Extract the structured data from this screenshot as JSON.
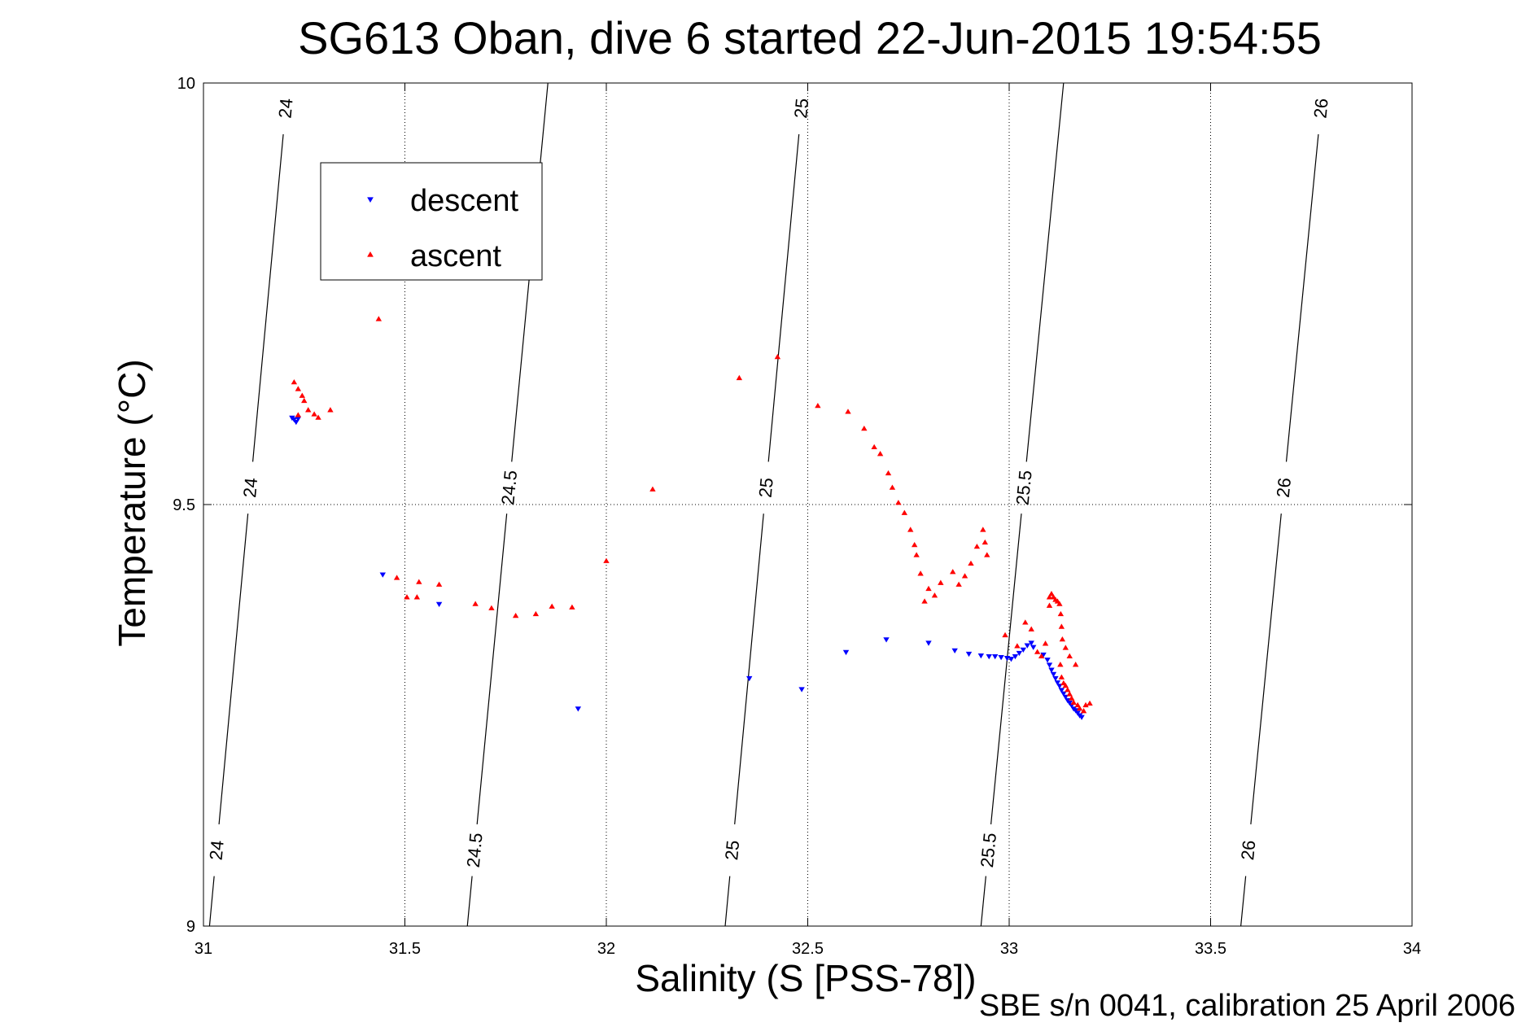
{
  "chart_data": {
    "type": "scatter",
    "title": "SG613 Oban, dive 6 started 22-Jun-2015 19:54:55",
    "xlabel": "Salinity (S [PSS-78])",
    "ylabel": "Temperature (°C)",
    "footnote": "SBE s/n 0041, calibration 25 April 2006",
    "xlim": [
      31,
      34
    ],
    "ylim": [
      9,
      10
    ],
    "xticks": [
      "31",
      "31.5",
      "32",
      "32.5",
      "33",
      "33.5",
      "34"
    ],
    "yticks": [
      "9",
      "9.5",
      "10"
    ],
    "grid": true,
    "legend": {
      "placement": "upper-left",
      "entries": [
        {
          "label": "descent",
          "color": "#0000ff",
          "marker": "triangle-down"
        },
        {
          "label": "ascent",
          "color": "#ff0000",
          "marker": "triangle-up"
        }
      ]
    },
    "density_contours": [
      {
        "label": "24",
        "top": [
          31.21,
          10.0
        ],
        "bottom": [
          31.015,
          9.0
        ],
        "labels_at": [
          9.97,
          9.52,
          9.09
        ]
      },
      {
        "label": "24.5",
        "top": [
          31.855,
          10.0
        ],
        "bottom": [
          31.655,
          9.0
        ],
        "labels_at": [
          9.52,
          9.09
        ]
      },
      {
        "label": "25",
        "top": [
          32.49,
          10.0
        ],
        "bottom": [
          32.295,
          9.0
        ],
        "labels_at": [
          9.97,
          9.52,
          9.09
        ]
      },
      {
        "label": "25.5",
        "top": [
          33.135,
          10.0
        ],
        "bottom": [
          32.93,
          9.0
        ],
        "labels_at": [
          9.52,
          9.09
        ]
      },
      {
        "label": "26",
        "top": [
          33.78,
          10.0
        ],
        "bottom": [
          33.575,
          9.0
        ],
        "labels_at": [
          9.97,
          9.52,
          9.09
        ]
      }
    ],
    "series": [
      {
        "name": "descent",
        "color": "#0000ff",
        "marker": "triangle-down",
        "points": [
          [
            31.22,
            9.603
          ],
          [
            31.225,
            9.601
          ],
          [
            31.23,
            9.598
          ],
          [
            31.235,
            9.602
          ],
          [
            31.445,
            9.417
          ],
          [
            31.585,
            9.382
          ],
          [
            31.93,
            9.258
          ],
          [
            32.355,
            9.294
          ],
          [
            32.485,
            9.281
          ],
          [
            32.595,
            9.325
          ],
          [
            32.695,
            9.34
          ],
          [
            32.8,
            9.336
          ],
          [
            32.865,
            9.327
          ],
          [
            32.9,
            9.323
          ],
          [
            32.93,
            9.321
          ],
          [
            32.95,
            9.32
          ],
          [
            32.965,
            9.32
          ],
          [
            32.98,
            9.319
          ],
          [
            32.995,
            9.318
          ],
          [
            33.005,
            9.317
          ],
          [
            33.015,
            9.32
          ],
          [
            33.025,
            9.324
          ],
          [
            33.035,
            9.328
          ],
          [
            33.045,
            9.333
          ],
          [
            33.055,
            9.336
          ],
          [
            33.06,
            9.331
          ],
          [
            33.085,
            9.322
          ],
          [
            33.095,
            9.316
          ],
          [
            33.1,
            9.31
          ],
          [
            33.105,
            9.304
          ],
          [
            33.11,
            9.299
          ],
          [
            33.115,
            9.294
          ],
          [
            33.12,
            9.289
          ],
          [
            33.125,
            9.285
          ],
          [
            33.13,
            9.28
          ],
          [
            33.135,
            9.276
          ],
          [
            33.14,
            9.272
          ],
          [
            33.145,
            9.268
          ],
          [
            33.15,
            9.265
          ],
          [
            33.155,
            9.262
          ],
          [
            33.16,
            9.258
          ],
          [
            33.165,
            9.256
          ],
          [
            33.17,
            9.253
          ],
          [
            33.175,
            9.25
          ],
          [
            33.18,
            9.248
          ]
        ]
      },
      {
        "name": "ascent",
        "color": "#ff0000",
        "marker": "triangle-up",
        "points": [
          [
            31.435,
            9.72
          ],
          [
            31.225,
            9.645
          ],
          [
            31.235,
            9.637
          ],
          [
            31.245,
            9.629
          ],
          [
            31.25,
            9.623
          ],
          [
            31.26,
            9.612
          ],
          [
            31.275,
            9.607
          ],
          [
            31.315,
            9.612
          ],
          [
            31.285,
            9.603
          ],
          [
            31.235,
            9.606
          ],
          [
            31.48,
            9.413
          ],
          [
            31.535,
            9.408
          ],
          [
            31.505,
            9.39
          ],
          [
            31.53,
            9.39
          ],
          [
            31.585,
            9.405
          ],
          [
            31.675,
            9.382
          ],
          [
            31.715,
            9.377
          ],
          [
            31.775,
            9.368
          ],
          [
            31.825,
            9.37
          ],
          [
            31.865,
            9.379
          ],
          [
            31.915,
            9.378
          ],
          [
            32.0,
            9.433
          ],
          [
            32.115,
            9.518
          ],
          [
            32.33,
            9.65
          ],
          [
            32.425,
            9.675
          ],
          [
            32.525,
            9.617
          ],
          [
            32.6,
            9.61
          ],
          [
            32.64,
            9.59
          ],
          [
            32.665,
            9.568
          ],
          [
            32.68,
            9.56
          ],
          [
            32.7,
            9.537
          ],
          [
            32.71,
            9.52
          ],
          [
            32.725,
            9.502
          ],
          [
            32.74,
            9.49
          ],
          [
            32.755,
            9.47
          ],
          [
            32.765,
            9.452
          ],
          [
            32.77,
            9.44
          ],
          [
            32.78,
            9.418
          ],
          [
            32.8,
            9.4
          ],
          [
            32.815,
            9.392
          ],
          [
            32.79,
            9.385
          ],
          [
            32.83,
            9.407
          ],
          [
            32.86,
            9.42
          ],
          [
            32.875,
            9.405
          ],
          [
            32.89,
            9.415
          ],
          [
            32.905,
            9.43
          ],
          [
            32.92,
            9.45
          ],
          [
            32.935,
            9.47
          ],
          [
            32.94,
            9.455
          ],
          [
            32.945,
            9.44
          ],
          [
            32.99,
            9.345
          ],
          [
            33.02,
            9.332
          ],
          [
            33.04,
            9.36
          ],
          [
            33.055,
            9.352
          ],
          [
            33.07,
            9.325
          ],
          [
            33.08,
            9.32
          ],
          [
            33.09,
            9.335
          ],
          [
            33.1,
            9.39
          ],
          [
            33.1,
            9.38
          ],
          [
            33.105,
            9.394
          ],
          [
            33.11,
            9.39
          ],
          [
            33.115,
            9.387
          ],
          [
            33.12,
            9.385
          ],
          [
            33.125,
            9.382
          ],
          [
            33.128,
            9.37
          ],
          [
            33.13,
            9.355
          ],
          [
            33.132,
            9.34
          ],
          [
            33.127,
            9.31
          ],
          [
            33.13,
            9.295
          ],
          [
            33.135,
            9.288
          ],
          [
            33.14,
            9.285
          ],
          [
            33.145,
            9.28
          ],
          [
            33.15,
            9.275
          ],
          [
            33.155,
            9.27
          ],
          [
            33.16,
            9.265
          ],
          [
            33.17,
            9.262
          ],
          [
            33.175,
            9.258
          ],
          [
            33.185,
            9.255
          ],
          [
            33.19,
            9.262
          ],
          [
            33.2,
            9.264
          ],
          [
            33.165,
            9.31
          ],
          [
            33.15,
            9.32
          ],
          [
            33.14,
            9.33
          ]
        ]
      }
    ]
  }
}
